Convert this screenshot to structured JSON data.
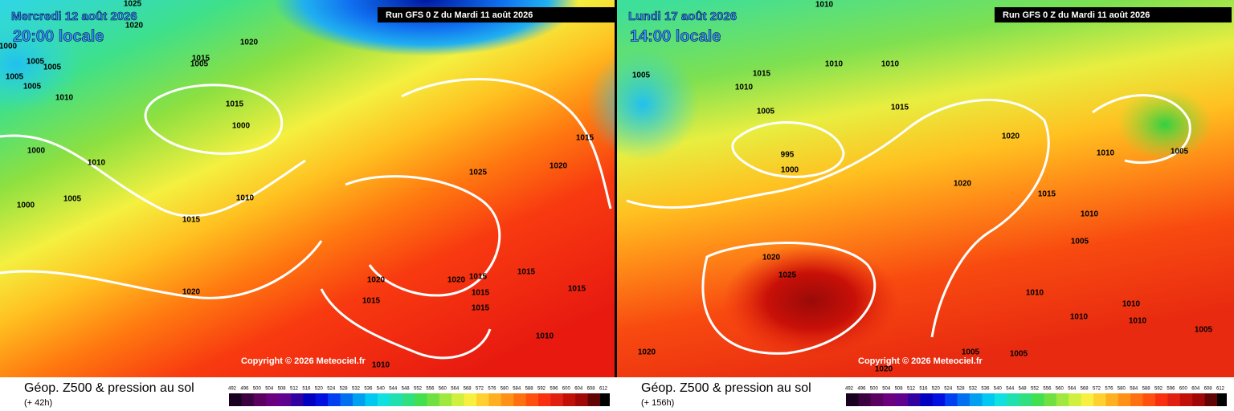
{
  "panels": [
    {
      "date": "Mercredi 12 août 2026",
      "time": "20:00 locale",
      "run": "Run GFS 0 Z du Mardi 11 août 2026",
      "copyright": "Copyright © 2026 Meteociel.fr",
      "caption": "Géop. Z500 & pression au sol",
      "lead": "(+ 42h)",
      "isobars": [
        1025,
        1020,
        1020,
        1000,
        1005,
        1005,
        1015,
        1005,
        1010,
        1015,
        1005,
        1005,
        1000,
        1000,
        1010,
        1005,
        1010,
        1000,
        1015,
        1025,
        1020,
        1015,
        1020,
        1020,
        1015,
        1020,
        1015,
        1015,
        1015,
        1015,
        1015,
        1010,
        1010
      ]
    },
    {
      "date": "Lundi 17 août 2026",
      "time": "14:00 locale",
      "run": "Run GFS 0 Z du Mardi 11 août 2026",
      "copyright": "Copyright © 2026 Meteociel.fr",
      "caption": "Géop. Z500 & pression au sol",
      "lead": "(+ 156h)",
      "isobars": [
        1010,
        1005,
        1015,
        1010,
        1005,
        1010,
        1010,
        1015,
        995,
        1000,
        1020,
        1020,
        1015,
        1010,
        1010,
        1005,
        1005,
        1020,
        1025,
        1010,
        1010,
        1010,
        1010,
        1005,
        1005,
        1005,
        1020,
        1020
      ]
    }
  ],
  "scale_ticks": [
    492,
    496,
    500,
    504,
    508,
    512,
    516,
    520,
    524,
    528,
    532,
    536,
    540,
    544,
    548,
    552,
    556,
    560,
    564,
    568,
    572,
    576,
    580,
    584,
    588,
    592,
    596,
    600,
    604,
    608,
    612
  ]
}
